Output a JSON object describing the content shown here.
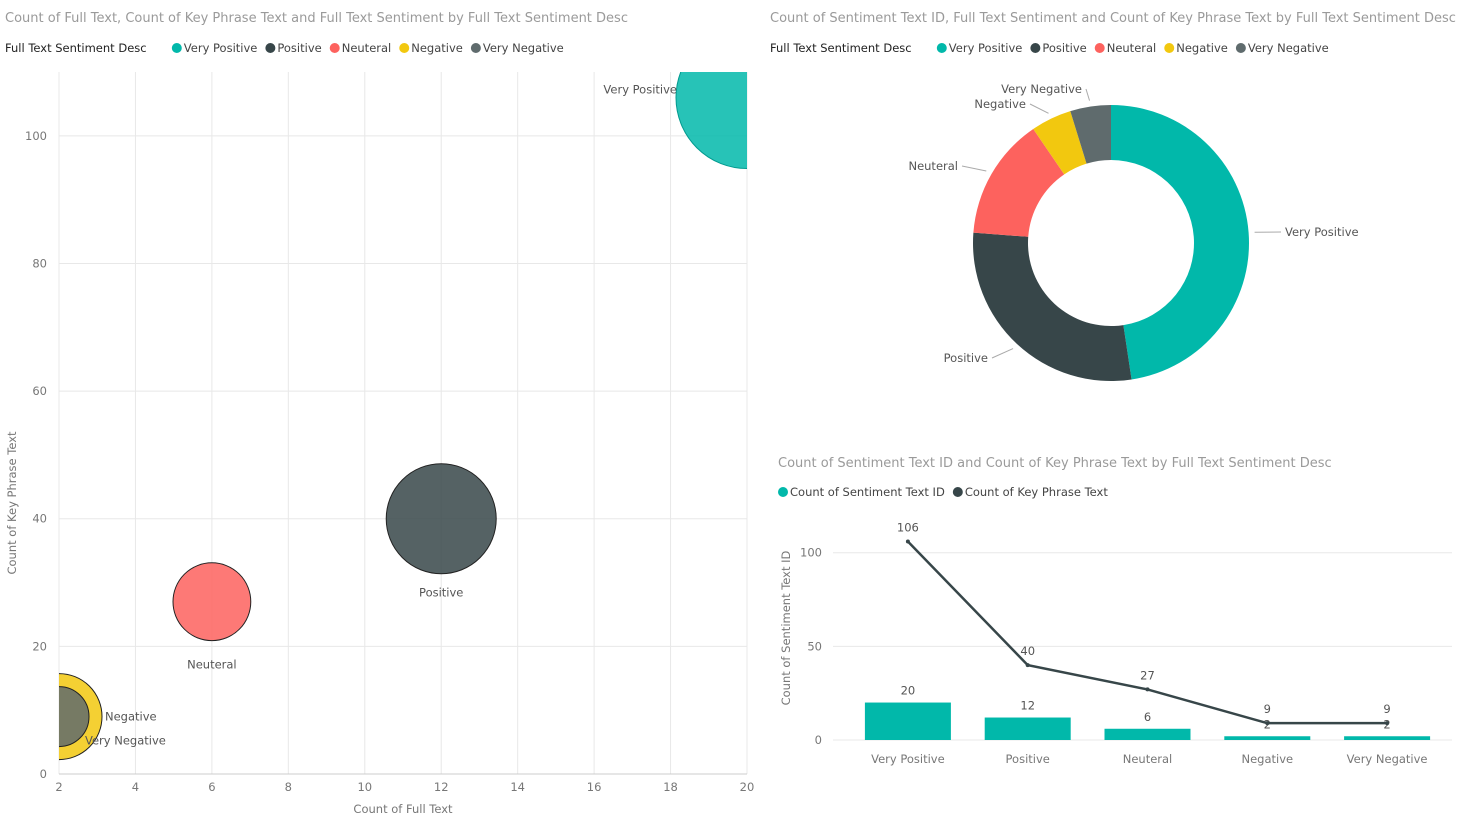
{
  "colors": {
    "Very Positive": "#01b8aa",
    "Positive": "#374649",
    "Neuteral": "#fd625e",
    "Negative": "#f2c80f",
    "Very Negative": "#5f6b6d"
  },
  "chart_data": [
    {
      "type": "scatter",
      "title": "Count of Full Text, Count of Key Phrase Text and Full Text Sentiment by Full Text Sentiment Desc",
      "legend_title": "Full Text Sentiment Desc",
      "legend": [
        "Very Positive",
        "Positive",
        "Neuteral",
        "Negative",
        "Very Negative"
      ],
      "xlabel": "Count of Full Text",
      "ylabel": "Count of Key Phrase Text",
      "xlim": [
        2,
        20
      ],
      "ylim": [
        0,
        110
      ],
      "xticks": [
        2,
        4,
        6,
        8,
        10,
        12,
        14,
        16,
        18,
        20
      ],
      "yticks": [
        0,
        20,
        40,
        60,
        80,
        100
      ],
      "points": [
        {
          "label": "Very Positive",
          "x": 20,
          "y": 106,
          "size": 20
        },
        {
          "label": "Positive",
          "x": 12,
          "y": 40,
          "size": 12
        },
        {
          "label": "Neuteral",
          "x": 6,
          "y": 27,
          "size": 6
        },
        {
          "label": "Negative",
          "x": 2,
          "y": 9,
          "size": 2
        },
        {
          "label": "Very Negative",
          "x": 2,
          "y": 9,
          "size": 1
        }
      ]
    },
    {
      "type": "pie",
      "title": "Count of Sentiment Text ID, Full Text Sentiment and Count of Key Phrase Text by Full Text Sentiment Desc",
      "legend_title": "Full Text Sentiment Desc",
      "legend": [
        "Very Positive",
        "Positive",
        "Neuteral",
        "Negative",
        "Very Negative"
      ],
      "slices": [
        {
          "label": "Very Positive",
          "value": 20
        },
        {
          "label": "Positive",
          "value": 12
        },
        {
          "label": "Neuteral",
          "value": 6
        },
        {
          "label": "Negative",
          "value": 2
        },
        {
          "label": "Very Negative",
          "value": 2
        }
      ]
    },
    {
      "type": "bar",
      "title": "Count of Sentiment Text ID and Count of Key Phrase Text by Full Text Sentiment Desc",
      "legend": [
        "Count of Sentiment Text ID",
        "Count of Key Phrase Text"
      ],
      "ylabel": "Count of Sentiment Text ID",
      "ylim": [
        0,
        110
      ],
      "yticks": [
        0,
        50,
        100
      ],
      "categories": [
        "Very Positive",
        "Positive",
        "Neuteral",
        "Negative",
        "Very Negative"
      ],
      "series": [
        {
          "name": "Count of Sentiment Text ID",
          "type": "bar",
          "values": [
            20,
            12,
            6,
            2,
            2
          ]
        },
        {
          "name": "Count of Key Phrase Text",
          "type": "line",
          "values": [
            106,
            40,
            27,
            9,
            9
          ]
        }
      ]
    }
  ]
}
